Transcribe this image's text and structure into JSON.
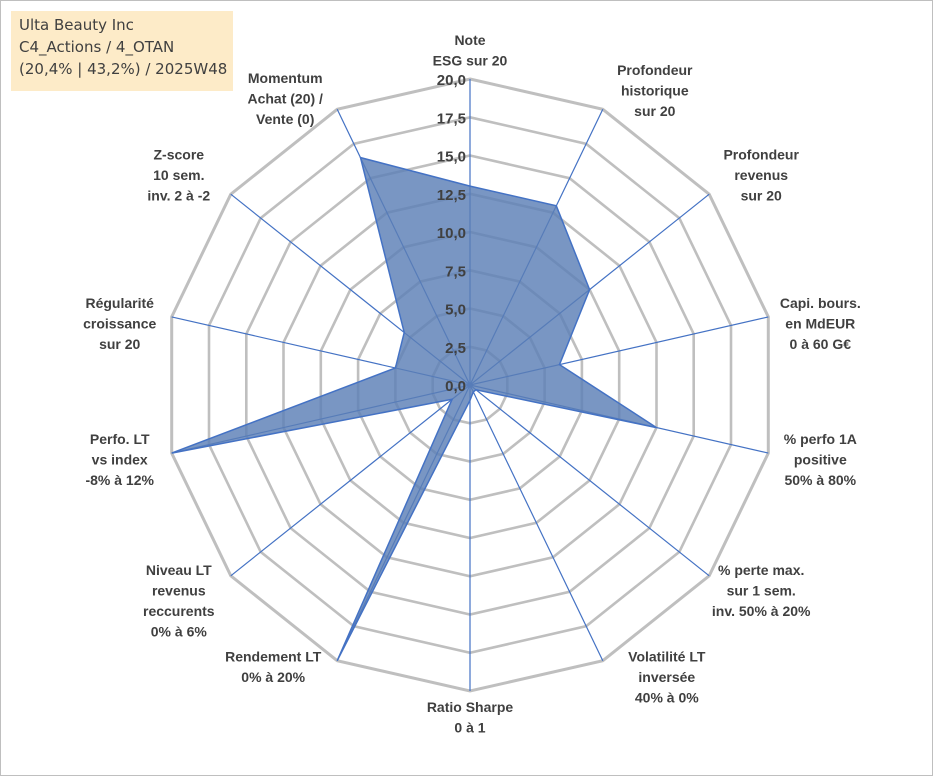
{
  "header": {
    "company": "Ulta Beauty Inc",
    "portfolio": "C4_Actions / 4_OTAN",
    "stats": "(20,4% | 43,2%) / 2025W48"
  },
  "chart_data": {
    "type": "radar",
    "rmin": 0,
    "rmax": 20,
    "ticks": [
      "0,0",
      "2,5",
      "5,0",
      "7,5",
      "10,0",
      "12,5",
      "15,0",
      "17,5",
      "20,0"
    ],
    "tick_values": [
      0,
      2.5,
      5,
      7.5,
      10,
      12.5,
      15,
      17.5,
      20
    ],
    "gridlines": true,
    "series": [
      {
        "name": "Ulta Beauty Inc",
        "fill": "#5b7fb6",
        "stroke": "#4472c4",
        "values": [
          13.0,
          13.0,
          10.0,
          6.0,
          12.5,
          0.5,
          0.5,
          1.0,
          20.0,
          1.5,
          20.0,
          5.0,
          5.5,
          16.5
        ]
      }
    ],
    "axes": [
      {
        "label": [
          "Note",
          "ESG sur 20"
        ]
      },
      {
        "label": [
          "Profondeur",
          "historique",
          "sur 20"
        ]
      },
      {
        "label": [
          "Profondeur",
          "revenus",
          "sur 20"
        ]
      },
      {
        "label": [
          "Capi. bours.",
          "en MdEUR",
          "0 à 60 G€"
        ]
      },
      {
        "label": [
          "% perfo 1A",
          "positive",
          "50% à 80%"
        ]
      },
      {
        "label": [
          "% perte max.",
          "sur 1 sem.",
          "inv. 50% à 20%"
        ]
      },
      {
        "label": [
          "Volatilité LT",
          "inversée",
          "40% à 0%"
        ]
      },
      {
        "label": [
          "Ratio Sharpe",
          "0 à 1"
        ]
      },
      {
        "label": [
          "Rendement LT",
          "0% à 20%"
        ]
      },
      {
        "label": [
          "Niveau LT",
          "revenus",
          "reccurents",
          "0% à 6%"
        ]
      },
      {
        "label": [
          "Perfo. LT",
          "vs index",
          "-8% à 12%"
        ]
      },
      {
        "label": [
          "Régularité",
          "croissance",
          "sur 20"
        ]
      },
      {
        "label": [
          "Z-score",
          "10 sem.",
          "inv. 2 à -2"
        ]
      },
      {
        "label": [
          "Momentum",
          "Achat (20) /",
          "Vente (0)"
        ]
      }
    ]
  }
}
